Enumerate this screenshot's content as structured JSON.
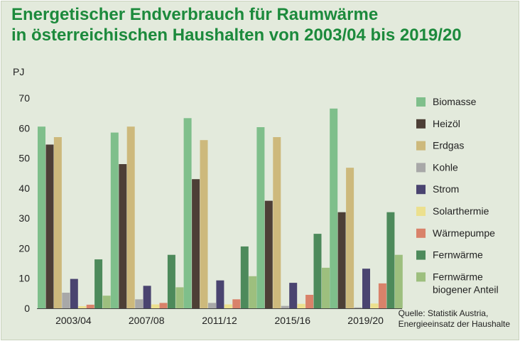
{
  "chart_data": {
    "type": "bar",
    "title_lines": [
      "Energetischer Endverbrauch für Raumwärme",
      "in österreichischen Haushalten von 2003/04 bis 2019/20"
    ],
    "ylabel": "PJ",
    "ylim": [
      0,
      70
    ],
    "yticks": [
      "0",
      "10",
      "20",
      "30",
      "40",
      "50",
      "60",
      "70"
    ],
    "grid": false,
    "legend_position": "right",
    "categories": [
      "2003/04",
      "2007/08",
      "2011/12",
      "2015/16",
      "2019/20"
    ],
    "series": [
      {
        "name": "Biomasse",
        "color": "#7fbf8b",
        "values": [
          60.5,
          58.5,
          63.3,
          60.3,
          66.5
        ]
      },
      {
        "name": "Heizöl",
        "color": "#4d3f36",
        "values": [
          54.5,
          48.0,
          43.0,
          35.8,
          32.0
        ]
      },
      {
        "name": "Erdgas",
        "color": "#cdb97c",
        "values": [
          57.0,
          60.5,
          56.0,
          57.0,
          46.8
        ]
      },
      {
        "name": "Kohle",
        "color": "#a8a8a8",
        "values": [
          5.2,
          3.0,
          1.8,
          0.8,
          0.3
        ]
      },
      {
        "name": "Strom",
        "color": "#4a4470",
        "values": [
          9.8,
          7.5,
          9.3,
          8.5,
          13.2
        ]
      },
      {
        "name": "Solarthermie",
        "color": "#ece08e",
        "values": [
          0.7,
          1.3,
          1.3,
          1.5,
          1.6
        ]
      },
      {
        "name": "Wärmepumpe",
        "color": "#d9826a",
        "values": [
          1.2,
          1.8,
          3.0,
          4.5,
          8.3
        ]
      },
      {
        "name": "Fernwärme",
        "color": "#4d8a5b",
        "values": [
          16.3,
          17.8,
          20.6,
          24.8,
          32.0
        ]
      },
      {
        "name": "Fernwärme biogener Anteil",
        "label_lines": [
          "Fernwärme",
          "biogener Anteil"
        ],
        "color": "#9dbf7e",
        "values": [
          4.2,
          7.0,
          10.7,
          13.5,
          17.8
        ]
      }
    ],
    "source_lines": [
      "Quelle: Statistik Austria,",
      "Energieeinsatz der Haushalte"
    ]
  }
}
